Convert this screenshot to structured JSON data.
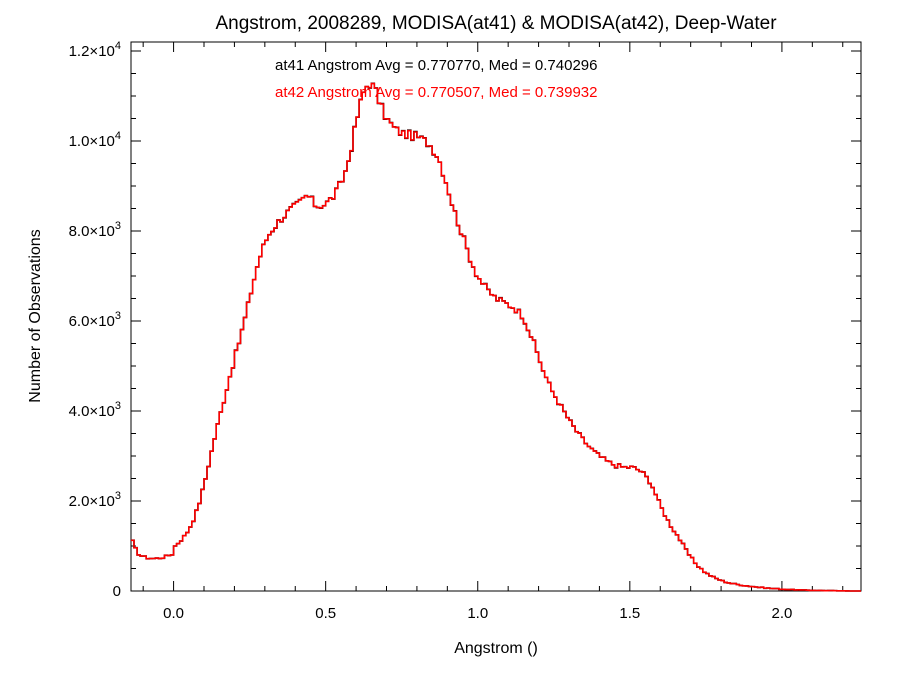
{
  "chart_data": {
    "type": "histogram-step",
    "title": "Angstrom, 2008289, MODISA(at41) & MODISA(at42), Deep-Water",
    "xlabel": "Angstrom ()",
    "ylabel": "Number of Observations",
    "xlim": [
      -0.14,
      2.26
    ],
    "ylim": [
      0,
      12200
    ],
    "x_ticks": [
      {
        "value": 0.0,
        "label": "0.0"
      },
      {
        "value": 0.5,
        "label": "0.5"
      },
      {
        "value": 1.0,
        "label": "1.0"
      },
      {
        "value": 1.5,
        "label": "1.5"
      },
      {
        "value": 2.0,
        "label": "2.0"
      }
    ],
    "y_ticks": [
      {
        "value": 0,
        "mantissa": "0",
        "exp": ""
      },
      {
        "value": 2000,
        "mantissa": "2.0×10",
        "exp": "3"
      },
      {
        "value": 4000,
        "mantissa": "4.0×10",
        "exp": "3"
      },
      {
        "value": 6000,
        "mantissa": "6.0×10",
        "exp": "3"
      },
      {
        "value": 8000,
        "mantissa": "8.0×10",
        "exp": "3"
      },
      {
        "value": 10000,
        "mantissa": "1.0×10",
        "exp": "4"
      },
      {
        "value": 12000,
        "mantissa": "1.2×10",
        "exp": "4"
      }
    ],
    "annotations": [
      {
        "text": "at41 Angstrom Avg = 0.770770, Med = 0.740296",
        "color": "#000000"
      },
      {
        "text": "at42 Angstrom Avg = 0.770507, Med = 0.739932",
        "color": "#ff0000"
      }
    ],
    "series_colors": [
      "#000000",
      "#ff0000"
    ],
    "profile": [
      [
        -0.14,
        1900
      ],
      [
        -0.135,
        1100
      ],
      [
        -0.12,
        850
      ],
      [
        -0.1,
        760
      ],
      [
        -0.08,
        730
      ],
      [
        -0.06,
        720
      ],
      [
        -0.04,
        740
      ],
      [
        -0.02,
        780
      ],
      [
        -0.005,
        820
      ],
      [
        0.0,
        1600
      ],
      [
        0.005,
        1000
      ],
      [
        0.02,
        1100
      ],
      [
        0.04,
        1250
      ],
      [
        0.06,
        1500
      ],
      [
        0.08,
        1850
      ],
      [
        0.1,
        2350
      ],
      [
        0.12,
        2950
      ],
      [
        0.14,
        3550
      ],
      [
        0.16,
        4100
      ],
      [
        0.18,
        4650
      ],
      [
        0.2,
        5150
      ],
      [
        0.22,
        5650
      ],
      [
        0.24,
        6200
      ],
      [
        0.26,
        6800
      ],
      [
        0.28,
        7350
      ],
      [
        0.3,
        7750
      ],
      [
        0.32,
        8000
      ],
      [
        0.35,
        8250
      ],
      [
        0.38,
        8450
      ],
      [
        0.41,
        8600
      ],
      [
        0.44,
        8800
      ],
      [
        0.47,
        8550
      ],
      [
        0.5,
        8600
      ],
      [
        0.53,
        8800
      ],
      [
        0.56,
        9200
      ],
      [
        0.58,
        9700
      ],
      [
        0.6,
        10400
      ],
      [
        0.62,
        11000
      ],
      [
        0.64,
        11300
      ],
      [
        0.66,
        11200
      ],
      [
        0.68,
        10800
      ],
      [
        0.7,
        10500
      ],
      [
        0.73,
        10250
      ],
      [
        0.76,
        10150
      ],
      [
        0.8,
        10100
      ],
      [
        0.84,
        9950
      ],
      [
        0.87,
        9650
      ],
      [
        0.9,
        9000
      ],
      [
        0.92,
        8500
      ],
      [
        0.94,
        8100
      ],
      [
        0.96,
        7700
      ],
      [
        0.98,
        7300
      ],
      [
        1.0,
        7000
      ],
      [
        1.03,
        6700
      ],
      [
        1.06,
        6500
      ],
      [
        1.09,
        6400
      ],
      [
        1.12,
        6300
      ],
      [
        1.15,
        6100
      ],
      [
        1.18,
        5600
      ],
      [
        1.21,
        5000
      ],
      [
        1.24,
        4500
      ],
      [
        1.27,
        4150
      ],
      [
        1.3,
        3800
      ],
      [
        1.33,
        3500
      ],
      [
        1.36,
        3250
      ],
      [
        1.39,
        3050
      ],
      [
        1.42,
        2900
      ],
      [
        1.45,
        2800
      ],
      [
        1.48,
        2750
      ],
      [
        1.51,
        2750
      ],
      [
        1.54,
        2650
      ],
      [
        1.57,
        2400
      ],
      [
        1.6,
        1900
      ],
      [
        1.63,
        1500
      ],
      [
        1.66,
        1200
      ],
      [
        1.69,
        850
      ],
      [
        1.72,
        580
      ],
      [
        1.75,
        400
      ],
      [
        1.78,
        290
      ],
      [
        1.81,
        210
      ],
      [
        1.84,
        160
      ],
      [
        1.88,
        120
      ],
      [
        1.92,
        85
      ],
      [
        1.96,
        60
      ],
      [
        2.0,
        40
      ],
      [
        2.05,
        25
      ],
      [
        2.1,
        15
      ],
      [
        2.15,
        8
      ],
      [
        2.2,
        3
      ],
      [
        2.26,
        0
      ]
    ]
  }
}
